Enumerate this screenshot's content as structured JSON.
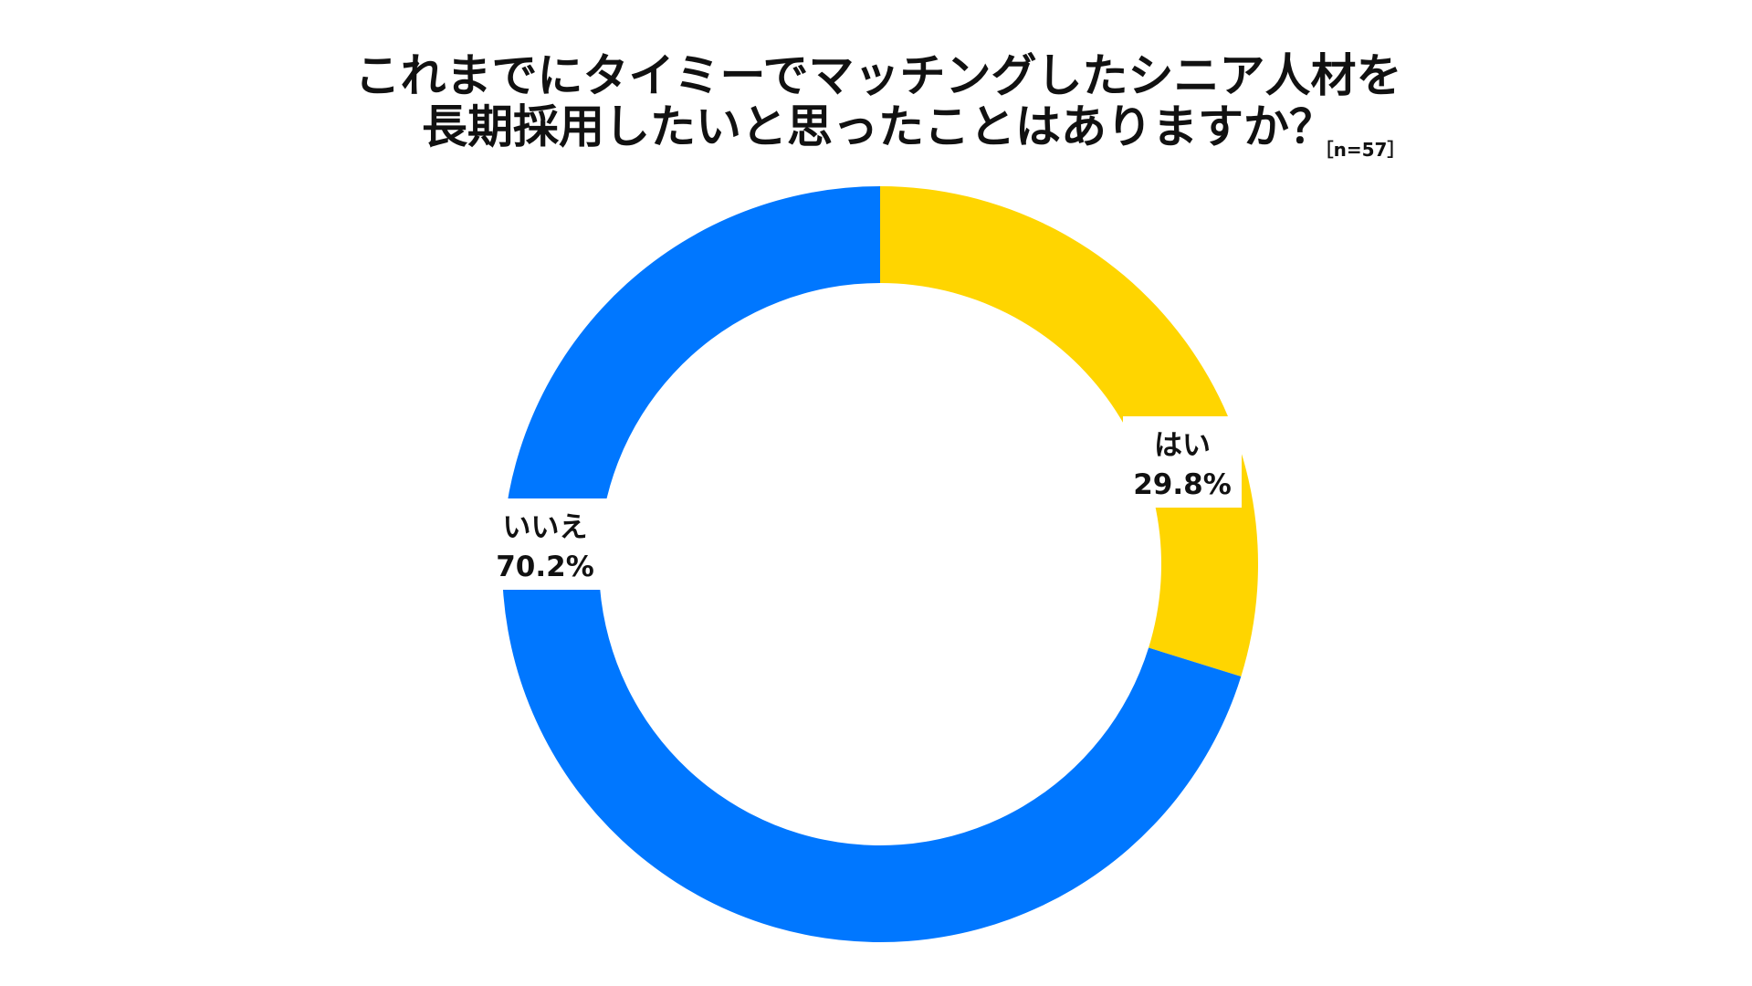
{
  "chart_data": {
    "type": "pie",
    "style": "donut",
    "title_lines": [
      "これまでにタイミーでマッチングしたシニア人材を",
      "長期採用したいと思ったことはありますか？"
    ],
    "sample_size": "［n=57］",
    "categories": [
      "はい",
      "いいえ"
    ],
    "values": [
      29.8,
      70.2
    ],
    "value_labels": [
      "29.8%",
      "70.2%"
    ],
    "colors": [
      "#FFD500",
      "#0077FF"
    ],
    "start_angle": "12 o'clock",
    "direction": "clockwise"
  }
}
